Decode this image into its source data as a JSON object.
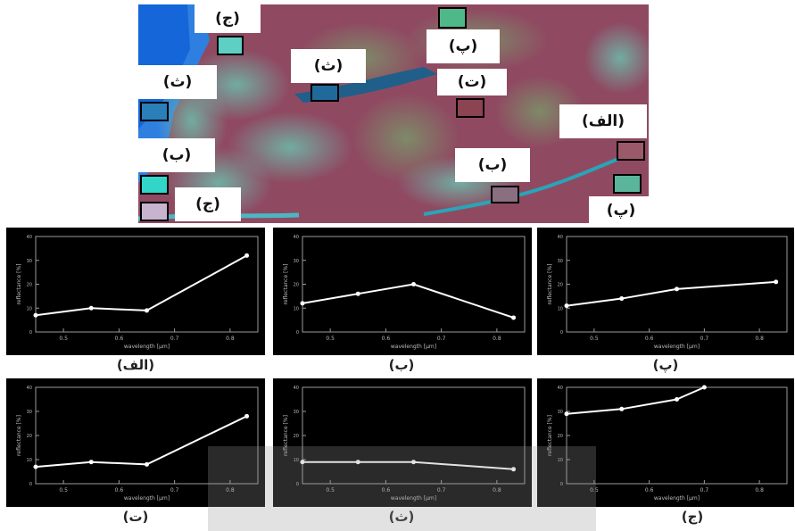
{
  "satellite": {
    "labels": [
      {
        "id": "lbl-jim-top",
        "text": "(ج)"
      },
      {
        "id": "lbl-pe-top",
        "text": "(پ)"
      },
      {
        "id": "lbl-se-left",
        "text": "(ث)"
      },
      {
        "id": "lbl-se-mid",
        "text": "(ث)"
      },
      {
        "id": "lbl-te",
        "text": "(ت)"
      },
      {
        "id": "lbl-alef",
        "text": "(الف)"
      },
      {
        "id": "lbl-be-left",
        "text": "(ب)"
      },
      {
        "id": "lbl-be-right",
        "text": "(ب)"
      },
      {
        "id": "lbl-jim-bottom",
        "text": "(ج)"
      },
      {
        "id": "lbl-pe-bottom",
        "text": "(پ)"
      }
    ]
  },
  "chart_data": [
    {
      "type": "line",
      "caption": "(الف)",
      "xlabel": "wavelength [µm]",
      "ylabel": "reflectance [%]",
      "xticks": [
        "0.5",
        "0.6",
        "0.7",
        "0.8"
      ],
      "xlim": [
        0.45,
        0.85
      ],
      "ylim": [
        0,
        40
      ],
      "x": [
        0.45,
        0.55,
        0.65,
        0.83
      ],
      "y": [
        7,
        10,
        9,
        32
      ]
    },
    {
      "type": "line",
      "caption": "(ب)",
      "xlabel": "wavelength [µm]",
      "ylabel": "reflectance [%]",
      "xticks": [
        "0.5",
        "0.6",
        "0.7",
        "0.8"
      ],
      "xlim": [
        0.45,
        0.85
      ],
      "ylim": [
        0,
        40
      ],
      "x": [
        0.45,
        0.55,
        0.65,
        0.83
      ],
      "y": [
        12,
        16,
        20,
        6
      ]
    },
    {
      "type": "line",
      "caption": "(پ)",
      "xlabel": "wavelength [µm]",
      "ylabel": "reflectance [%]",
      "xticks": [
        "0.5",
        "0.6",
        "0.7",
        "0.8"
      ],
      "xlim": [
        0.45,
        0.85
      ],
      "ylim": [
        0,
        40
      ],
      "x": [
        0.45,
        0.55,
        0.65,
        0.83
      ],
      "y": [
        11,
        14,
        18,
        21
      ]
    },
    {
      "type": "line",
      "caption": "(ت)",
      "xlabel": "wavelength [µm]",
      "ylabel": "reflectance [%]",
      "xticks": [
        "0.5",
        "0.6",
        "0.7",
        "0.8"
      ],
      "xlim": [
        0.45,
        0.85
      ],
      "ylim": [
        0,
        40
      ],
      "x": [
        0.45,
        0.55,
        0.65,
        0.83
      ],
      "y": [
        7,
        9,
        8,
        28
      ]
    },
    {
      "type": "line",
      "caption": "(ث)",
      "xlabel": "wavelength [µm]",
      "ylabel": "reflectance [%]",
      "xticks": [
        "0.5",
        "0.6",
        "0.7",
        "0.8"
      ],
      "xlim": [
        0.45,
        0.85
      ],
      "ylim": [
        0,
        40
      ],
      "x": [
        0.45,
        0.55,
        0.65,
        0.83
      ],
      "y": [
        9,
        9,
        9,
        6
      ]
    },
    {
      "type": "line",
      "caption": "(ج)",
      "xlabel": "wavelength [µm]",
      "ylabel": "reflectance [%]",
      "xticks": [
        "0.5",
        "0.6",
        "0.7",
        "0.8"
      ],
      "xlim": [
        0.45,
        0.85
      ],
      "ylim": [
        0,
        40
      ],
      "x": [
        0.45,
        0.55,
        0.65,
        0.7
      ],
      "y": [
        29,
        31,
        35,
        40
      ]
    }
  ]
}
